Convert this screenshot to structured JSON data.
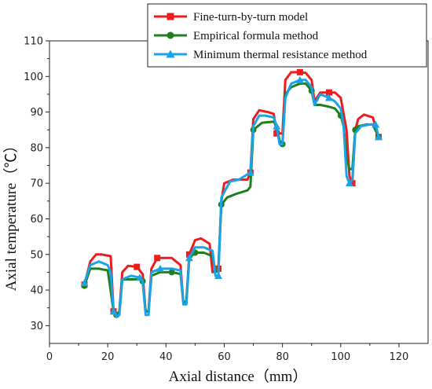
{
  "chart_data": {
    "type": "line",
    "title": "",
    "xlabel": "Axial distance（mm）",
    "ylabel": "Axial temperature（℃）",
    "xlim": [
      0,
      130
    ],
    "ylim": [
      25,
      110
    ],
    "xticks": [
      0,
      20,
      40,
      60,
      80,
      100,
      120
    ],
    "yticks": [
      30,
      40,
      50,
      60,
      70,
      80,
      90,
      100,
      110
    ],
    "grid": false,
    "legend_position": "top-right",
    "series": [
      {
        "name": "Fine-turn-by-turn model",
        "color": "#ee1c1c",
        "marker": "square",
        "points": [
          [
            12,
            41.5
          ],
          [
            14,
            48
          ],
          [
            16,
            50
          ],
          [
            18,
            50
          ],
          [
            21,
            49.5
          ],
          [
            22,
            34
          ],
          [
            23,
            33
          ],
          [
            24,
            34
          ],
          [
            25,
            45
          ],
          [
            27,
            46.8
          ],
          [
            30,
            46.5
          ],
          [
            32,
            44.5
          ],
          [
            33,
            34
          ],
          [
            34,
            34
          ],
          [
            35,
            46
          ],
          [
            37,
            49
          ],
          [
            42,
            49
          ],
          [
            45,
            47
          ],
          [
            46,
            36
          ],
          [
            47,
            37
          ],
          [
            48,
            50
          ],
          [
            50,
            54
          ],
          [
            52,
            54.5
          ],
          [
            55,
            53
          ],
          [
            56,
            45
          ],
          [
            58,
            46
          ],
          [
            59,
            65
          ],
          [
            60,
            70
          ],
          [
            63,
            71
          ],
          [
            68,
            71
          ],
          [
            69,
            73
          ],
          [
            70,
            88
          ],
          [
            72,
            90.5
          ],
          [
            75,
            90
          ],
          [
            77,
            89.5
          ],
          [
            78,
            84
          ],
          [
            79,
            84
          ],
          [
            80,
            84
          ],
          [
            81,
            99
          ],
          [
            83,
            101.2
          ],
          [
            86,
            101.2
          ],
          [
            88,
            101
          ],
          [
            90,
            99
          ],
          [
            91,
            93
          ],
          [
            93,
            95.5
          ],
          [
            96,
            95.5
          ],
          [
            98,
            95.5
          ],
          [
            100,
            94
          ],
          [
            102,
            85
          ],
          [
            103,
            72
          ],
          [
            104,
            70
          ],
          [
            105,
            85
          ],
          [
            106,
            88
          ],
          [
            108,
            89.3
          ],
          [
            111,
            88.5
          ],
          [
            113,
            83
          ]
        ]
      },
      {
        "name": "Empirical formula method",
        "color": "#1f7f1f",
        "marker": "circle",
        "points": [
          [
            12,
            41.2
          ],
          [
            14,
            46
          ],
          [
            17,
            46
          ],
          [
            20,
            45.5
          ],
          [
            22,
            34
          ],
          [
            23,
            33
          ],
          [
            24,
            34
          ],
          [
            25,
            43
          ],
          [
            28,
            43
          ],
          [
            31,
            43
          ],
          [
            32,
            42.5
          ],
          [
            33,
            34
          ],
          [
            34,
            34
          ],
          [
            35,
            44
          ],
          [
            38,
            45
          ],
          [
            42,
            45
          ],
          [
            45,
            44.5
          ],
          [
            46,
            36
          ],
          [
            47,
            37
          ],
          [
            48,
            49
          ],
          [
            50,
            50.5
          ],
          [
            53,
            50.5
          ],
          [
            56,
            49.5
          ],
          [
            57,
            45
          ],
          [
            58,
            45.5
          ],
          [
            59,
            64
          ],
          [
            61,
            66
          ],
          [
            64,
            67
          ],
          [
            68,
            68
          ],
          [
            69,
            69
          ],
          [
            70,
            85
          ],
          [
            73,
            87
          ],
          [
            77,
            87.3
          ],
          [
            78,
            86
          ],
          [
            79,
            82
          ],
          [
            80,
            81
          ],
          [
            81,
            95
          ],
          [
            83,
            97
          ],
          [
            86,
            98
          ],
          [
            88,
            98
          ],
          [
            90,
            96
          ],
          [
            91,
            92
          ],
          [
            93,
            92
          ],
          [
            96,
            91.5
          ],
          [
            98,
            91
          ],
          [
            100,
            89
          ],
          [
            101,
            86
          ],
          [
            102,
            77
          ],
          [
            103,
            74
          ],
          [
            104,
            74
          ],
          [
            105,
            85
          ],
          [
            106,
            86
          ],
          [
            109,
            86.5
          ],
          [
            111,
            86.5
          ],
          [
            113,
            83
          ]
        ]
      },
      {
        "name": "Minimum thermal resistance method",
        "color": "#1aa3e6",
        "marker": "triangle",
        "points": [
          [
            12,
            42
          ],
          [
            14,
            47
          ],
          [
            17,
            48
          ],
          [
            20,
            47
          ],
          [
            21,
            45
          ],
          [
            22,
            34
          ],
          [
            23,
            32.5
          ],
          [
            24,
            33
          ],
          [
            25,
            43
          ],
          [
            28,
            44
          ],
          [
            31,
            43.5
          ],
          [
            32,
            42.5
          ],
          [
            33,
            33
          ],
          [
            34,
            33
          ],
          [
            35,
            45
          ],
          [
            38,
            46
          ],
          [
            42,
            46
          ],
          [
            45,
            45.5
          ],
          [
            46,
            36
          ],
          [
            47,
            36
          ],
          [
            48,
            49
          ],
          [
            50,
            52
          ],
          [
            53,
            52
          ],
          [
            56,
            51
          ],
          [
            57,
            44
          ],
          [
            58,
            44
          ],
          [
            59,
            66
          ],
          [
            62,
            70.5
          ],
          [
            65,
            71
          ],
          [
            67,
            72
          ],
          [
            69,
            73
          ],
          [
            70,
            86
          ],
          [
            72,
            89
          ],
          [
            74,
            89
          ],
          [
            77,
            88.5
          ],
          [
            78,
            86
          ],
          [
            79,
            81
          ],
          [
            80,
            81
          ],
          [
            81,
            94
          ],
          [
            83,
            98
          ],
          [
            86,
            99
          ],
          [
            88,
            99
          ],
          [
            90,
            97
          ],
          [
            91,
            92
          ],
          [
            93,
            95
          ],
          [
            96,
            94
          ],
          [
            98,
            93
          ],
          [
            100,
            91
          ],
          [
            101,
            86
          ],
          [
            102,
            72
          ],
          [
            103,
            70
          ],
          [
            104,
            71
          ],
          [
            105,
            84
          ],
          [
            107,
            86
          ],
          [
            110,
            86.5
          ],
          [
            112,
            86.5
          ],
          [
            113,
            83
          ]
        ]
      }
    ]
  }
}
